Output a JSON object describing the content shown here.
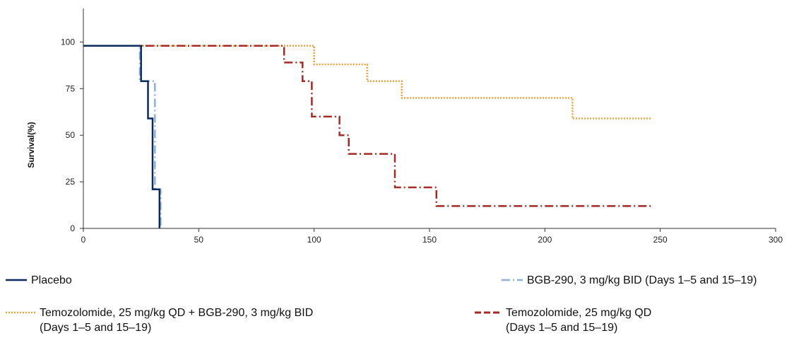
{
  "chart_data": {
    "type": "line",
    "title": "",
    "xlabel": "",
    "ylabel": "Survival(%)",
    "xlim": [
      0,
      300
    ],
    "ylim": [
      0,
      118
    ],
    "x_ticks": [
      0,
      50,
      100,
      150,
      200,
      250,
      300
    ],
    "y_ticks": [
      0,
      25,
      50,
      75,
      100
    ],
    "grid": false,
    "legend_position": "bottom",
    "series": [
      {
        "name": "Placebo",
        "legend_lines": [
          "Placebo"
        ],
        "color": "#0d2a5c",
        "style": "solid",
        "points": [
          [
            0,
            98
          ],
          [
            25,
            98
          ],
          [
            25,
            79
          ],
          [
            28,
            79
          ],
          [
            28,
            59
          ],
          [
            30,
            59
          ],
          [
            30,
            21
          ],
          [
            33,
            21
          ],
          [
            33,
            0
          ]
        ]
      },
      {
        "name": "BGB-290, 3 mg/kg BID (Days 1–5 and 15–19)",
        "legend_lines": [
          "BGB-290, 3 mg/kg BID (Days 1–5 and 15–19)"
        ],
        "color": "#8fb0d6",
        "style": "dashdot",
        "points": [
          [
            0,
            98
          ],
          [
            24.5,
            98
          ],
          [
            24.5,
            79
          ],
          [
            31,
            79
          ],
          [
            31,
            21
          ],
          [
            33.5,
            21
          ],
          [
            33.5,
            0
          ]
        ]
      },
      {
        "name": "Temozolomide, 25 mg/kg QD + BGB-290, 3 mg/kg BID (Days 1–5 and 15–19)",
        "legend_lines": [
          "Temozolomide, 25 mg/kg QD + BGB-290, 3 mg/kg BID",
          "(Days 1–5 and 15–19)"
        ],
        "color": "#e8a13a",
        "style": "dotted",
        "points": [
          [
            0,
            98
          ],
          [
            100,
            98
          ],
          [
            100,
            88
          ],
          [
            123,
            88
          ],
          [
            123,
            79
          ],
          [
            138,
            79
          ],
          [
            138,
            70
          ],
          [
            212,
            70
          ],
          [
            212,
            59
          ],
          [
            246,
            59
          ]
        ]
      },
      {
        "name": "Temozolomide, 25 mg/kg QD (Days 1–5 and 15–19)",
        "legend_lines": [
          "Temozolomide, 25 mg/kg QD",
          "(Days 1–5 and 15–19)"
        ],
        "color": "#a32a25",
        "style": "dashdot",
        "points": [
          [
            0,
            98
          ],
          [
            87,
            98
          ],
          [
            87,
            89
          ],
          [
            95,
            89
          ],
          [
            95,
            79
          ],
          [
            99,
            79
          ],
          [
            99,
            60
          ],
          [
            111,
            60
          ],
          [
            111,
            50
          ],
          [
            115,
            50
          ],
          [
            115,
            40
          ],
          [
            135,
            40
          ],
          [
            135,
            22
          ],
          [
            153,
            22
          ],
          [
            153,
            12
          ],
          [
            246,
            12
          ]
        ]
      }
    ]
  }
}
